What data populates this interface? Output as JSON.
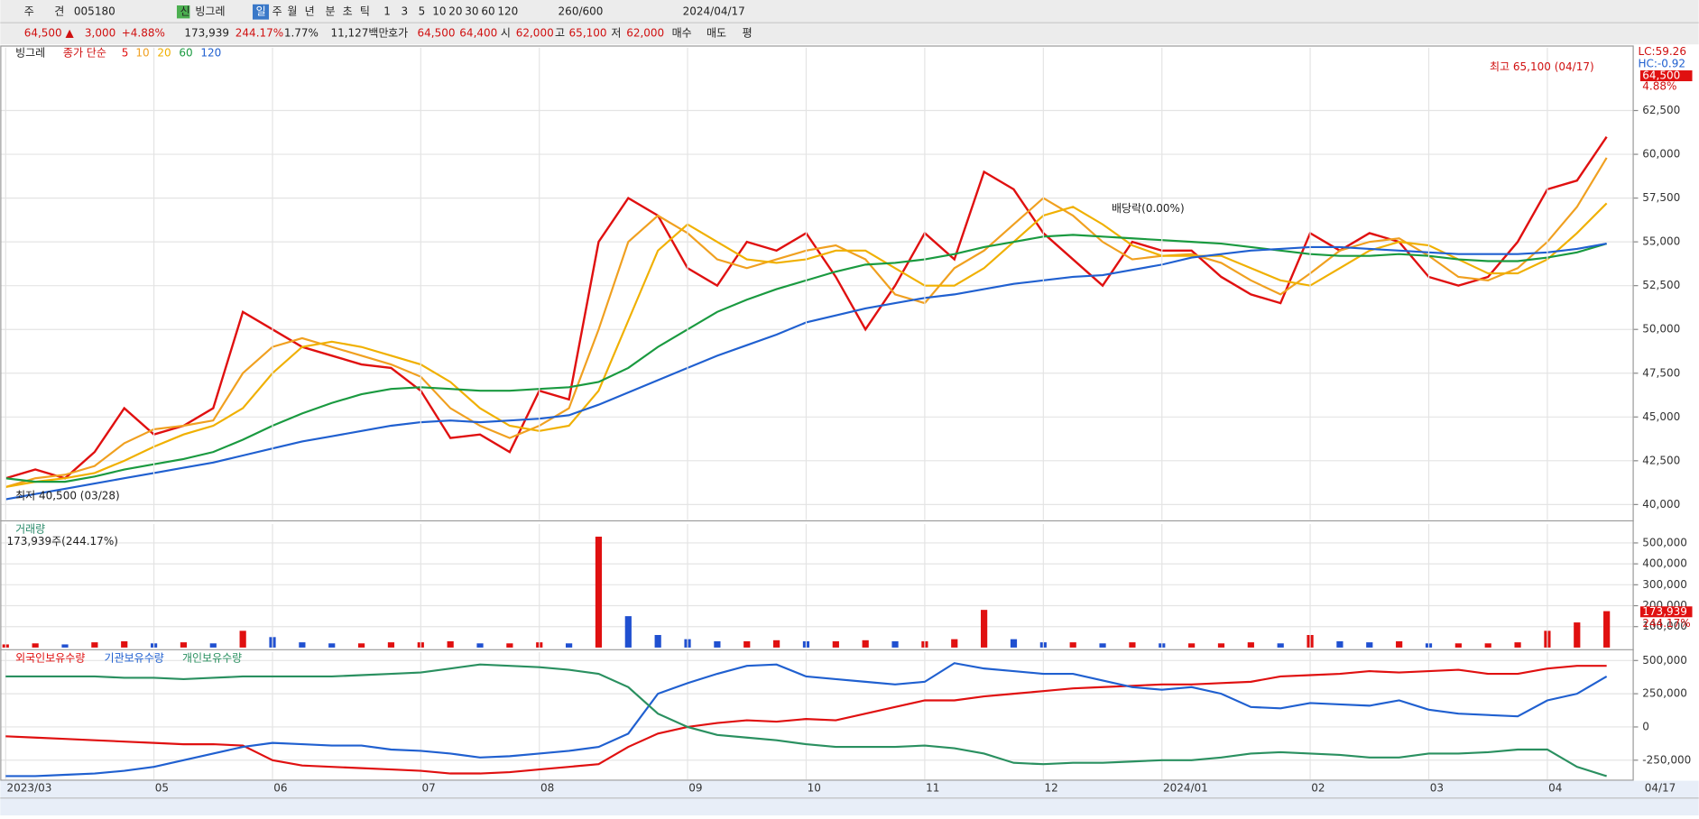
{
  "toolbar": {
    "row1": [
      "주",
      "견",
      "005180",
      "신",
      "빙그레",
      "일",
      "주",
      "월",
      "년",
      "분",
      "초",
      "틱",
      "1",
      "3",
      "5",
      "10",
      "20",
      "30",
      "60",
      "120",
      "260/600",
      "2024/04/17"
    ],
    "row2": [
      "64,500 ▲",
      "3,000",
      "+4.88%",
      "173,939",
      "244.17%",
      "1.77%",
      "11,127백만",
      "호가",
      "64,500",
      "64,400",
      "시",
      "62,000",
      "고",
      "65,100",
      "저",
      "62,000",
      "매수",
      "매도",
      "평"
    ]
  },
  "chart_data": [
    {
      "type": "line",
      "title": "빙그레",
      "legend_label": "종가 단순",
      "annotations": [
        "최고 65,100 (04/17)",
        "최저 40,500 (03/28)",
        "배당락(0.00%)"
      ],
      "right_labels": [
        "LC:59.26",
        "HC:-0.92",
        "64,500",
        "4.88%"
      ],
      "ylim": [
        39130,
        66090
      ],
      "yticks": [
        {
          "value": 40000,
          "label": "40,000"
        },
        {
          "value": 42500,
          "label": "42,500"
        },
        {
          "value": 45000,
          "label": "45,000"
        },
        {
          "value": 47500,
          "label": "47,500"
        },
        {
          "value": 50000,
          "label": "50,000"
        },
        {
          "value": 52500,
          "label": "52,500"
        },
        {
          "value": 55000,
          "label": "55,000"
        },
        {
          "value": 57500,
          "label": "57,500"
        },
        {
          "value": 60000,
          "label": "60,000"
        },
        {
          "value": 62500,
          "label": "62,500"
        }
      ],
      "grid": true,
      "series": [
        {
          "name": "5",
          "color": "#e01010",
          "values": [
            41500,
            42000,
            41500,
            43000,
            45500,
            44000,
            44500,
            45500,
            51000,
            50000,
            49000,
            48500,
            48000,
            47800,
            46500,
            43800,
            44000,
            43000,
            46500,
            46000,
            55000,
            57500,
            56500,
            53500,
            52500,
            55000,
            54500,
            55500,
            53000,
            50000,
            52500,
            55500,
            54000,
            59000,
            58000,
            55500,
            54000,
            52500,
            55000,
            54500,
            54500,
            53000,
            52000,
            51500,
            55500,
            54500,
            55500,
            55000,
            53000,
            52500,
            53000,
            55000,
            58000,
            58500,
            61000
          ]
        },
        {
          "name": "10",
          "color": "#f0a020",
          "values": [
            41000,
            41500,
            41700,
            42200,
            43500,
            44300,
            44500,
            44800,
            47500,
            49000,
            49500,
            49000,
            48500,
            48000,
            47300,
            45500,
            44500,
            43800,
            44500,
            45500,
            50000,
            55000,
            56500,
            55500,
            54000,
            53500,
            54000,
            54500,
            54800,
            54000,
            52000,
            51500,
            53500,
            54500,
            56000,
            57500,
            56500,
            55000,
            54000,
            54200,
            54300,
            53800,
            52800,
            52000,
            53200,
            54500,
            55000,
            55200,
            54200,
            53000,
            52800,
            53500,
            55000,
            57000,
            59800
          ]
        },
        {
          "name": "20",
          "color": "#f0b000",
          "values": [
            41000,
            41300,
            41500,
            41800,
            42500,
            43300,
            44000,
            44500,
            45500,
            47500,
            49000,
            49300,
            49000,
            48500,
            48000,
            47000,
            45500,
            44500,
            44200,
            44500,
            46500,
            50500,
            54500,
            56000,
            55000,
            54000,
            53800,
            54000,
            54500,
            54500,
            53500,
            52500,
            52500,
            53500,
            55000,
            56500,
            57000,
            56000,
            54800,
            54200,
            54200,
            54200,
            53500,
            52800,
            52500,
            53500,
            54500,
            55000,
            54800,
            54000,
            53200,
            53200,
            54000,
            55500,
            57200
          ]
        },
        {
          "name": "60",
          "color": "#1a9a40",
          "values": [
            41500,
            41300,
            41300,
            41600,
            42000,
            42300,
            42600,
            43000,
            43700,
            44500,
            45200,
            45800,
            46300,
            46600,
            46700,
            46600,
            46500,
            46500,
            46600,
            46700,
            47000,
            47800,
            49000,
            50000,
            51000,
            51700,
            52300,
            52800,
            53300,
            53700,
            53800,
            54000,
            54300,
            54700,
            55000,
            55300,
            55400,
            55300,
            55200,
            55100,
            55000,
            54900,
            54700,
            54500,
            54300,
            54200,
            54200,
            54300,
            54200,
            54000,
            53900,
            53900,
            54100,
            54400,
            54900
          ]
        },
        {
          "name": "120",
          "color": "#2060d0",
          "values": [
            40300,
            40600,
            40900,
            41200,
            41500,
            41800,
            42100,
            42400,
            42800,
            43200,
            43600,
            43900,
            44200,
            44500,
            44700,
            44800,
            44700,
            44800,
            44900,
            45100,
            45700,
            46400,
            47100,
            47800,
            48500,
            49100,
            49700,
            50400,
            50800,
            51200,
            51500,
            51800,
            52000,
            52300,
            52600,
            52800,
            53000,
            53100,
            53400,
            53700,
            54100,
            54300,
            54500,
            54600,
            54700,
            54700,
            54600,
            54500,
            54400,
            54300,
            54300,
            54300,
            54400,
            54600,
            54900
          ]
        }
      ]
    },
    {
      "type": "bar",
      "title": "거래량",
      "subtitle": "173,939주(244.17%)",
      "right_labels": [
        "173,939",
        "244.17%"
      ],
      "ylim": [
        0,
        590000
      ],
      "yticks": [
        {
          "value": 100000,
          "label": "100,000"
        },
        {
          "value": 200000,
          "label": "200,000"
        },
        {
          "value": 300000,
          "label": "300,000"
        },
        {
          "value": 400000,
          "label": "400,000"
        },
        {
          "value": 500000,
          "label": "500,000"
        }
      ],
      "up_color": "#e01010",
      "down_color": "#2050d0",
      "values": [
        15000,
        20000,
        15000,
        25000,
        30000,
        20000,
        25000,
        20000,
        80000,
        50000,
        25000,
        20000,
        20000,
        25000,
        25000,
        30000,
        20000,
        20000,
        25000,
        20000,
        530000,
        150000,
        60000,
        40000,
        30000,
        30000,
        35000,
        30000,
        30000,
        35000,
        30000,
        30000,
        40000,
        180000,
        40000,
        25000,
        25000,
        20000,
        25000,
        20000,
        20000,
        20000,
        25000,
        20000,
        60000,
        30000,
        25000,
        30000,
        20000,
        20000,
        20000,
        25000,
        80000,
        120000,
        173939
      ]
    },
    {
      "type": "line",
      "ylim": [
        -396600,
        565000
      ],
      "yticks": [
        {
          "value": -250000,
          "label": "-250,000"
        },
        0,
        {
          "value": 250000,
          "label": "250,000"
        },
        {
          "value": 500000,
          "label": "500,000"
        }
      ],
      "categories": [
        "2023/03",
        null,
        null,
        null,
        null,
        "05",
        null,
        null,
        null,
        "06",
        null,
        null,
        null,
        null,
        "07",
        null,
        null,
        null,
        "08",
        null,
        null,
        null,
        null,
        "09",
        null,
        null,
        null,
        "10",
        null,
        null,
        null,
        "11",
        null,
        null,
        null,
        "12",
        null,
        null,
        null,
        "2024/01",
        null,
        null,
        null,
        null,
        "02",
        null,
        null,
        null,
        "03",
        null,
        null,
        null,
        "04",
        null,
        null
      ],
      "end_label": "04/17",
      "series": [
        {
          "name": "외국인보유수량",
          "color": "#e01010",
          "values": [
            -70000,
            -80000,
            -90000,
            -100000,
            -110000,
            -120000,
            -130000,
            -130000,
            -140000,
            -250000,
            -290000,
            -300000,
            -310000,
            -320000,
            -330000,
            -350000,
            -350000,
            -340000,
            -320000,
            -300000,
            -280000,
            -150000,
            -50000,
            0,
            30000,
            50000,
            40000,
            60000,
            50000,
            100000,
            150000,
            200000,
            200000,
            230000,
            250000,
            270000,
            290000,
            300000,
            310000,
            320000,
            320000,
            330000,
            340000,
            380000,
            390000,
            400000,
            420000,
            410000,
            420000,
            430000,
            400000,
            400000,
            440000,
            460000,
            460000
          ]
        },
        {
          "name": "기관보유수량",
          "color": "#2060d0",
          "values": [
            -370000,
            -370000,
            -360000,
            -350000,
            -330000,
            -300000,
            -250000,
            -200000,
            -150000,
            -120000,
            -130000,
            -140000,
            -140000,
            -170000,
            -180000,
            -200000,
            -230000,
            -220000,
            -200000,
            -180000,
            -150000,
            -50000,
            250000,
            330000,
            400000,
            460000,
            470000,
            380000,
            360000,
            340000,
            320000,
            340000,
            480000,
            440000,
            420000,
            400000,
            400000,
            350000,
            300000,
            280000,
            300000,
            250000,
            150000,
            140000,
            180000,
            170000,
            160000,
            200000,
            130000,
            100000,
            90000,
            80000,
            200000,
            250000,
            380000
          ]
        },
        {
          "name": "개인보유수량",
          "color": "#2a9060",
          "values": [
            380000,
            380000,
            380000,
            380000,
            370000,
            370000,
            360000,
            370000,
            380000,
            380000,
            380000,
            380000,
            390000,
            400000,
            410000,
            440000,
            470000,
            460000,
            450000,
            430000,
            400000,
            300000,
            100000,
            0,
            -60000,
            -80000,
            -100000,
            -130000,
            -150000,
            -150000,
            -150000,
            -140000,
            -160000,
            -200000,
            -270000,
            -280000,
            -270000,
            -270000,
            -260000,
            -250000,
            -250000,
            -230000,
            -200000,
            -190000,
            -200000,
            -210000,
            -230000,
            -230000,
            -200000,
            -200000,
            -190000,
            -170000,
            -170000,
            -300000,
            -370000
          ]
        }
      ]
    }
  ]
}
